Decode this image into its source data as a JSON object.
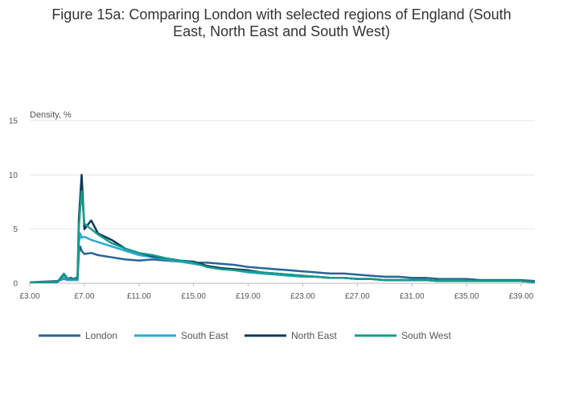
{
  "chart_data": {
    "type": "line",
    "title_lines": [
      "Figure 15a: Comparing London with selected regions of England (South",
      "East, North East and South West)"
    ],
    "ylabel": "Density, %",
    "xlabel": "",
    "xlim": [
      3.0,
      40.0
    ],
    "ylim": [
      0,
      15
    ],
    "x_ticks": [
      3,
      7,
      11,
      15,
      19,
      23,
      27,
      31,
      35,
      39
    ],
    "x_tick_labels": [
      "£3.00",
      "£7.00",
      "£11.00",
      "£15.00",
      "£19.00",
      "£23.00",
      "£27.00",
      "£31.00",
      "£35.00",
      "£39.00"
    ],
    "y_ticks": [
      0,
      5,
      10,
      15
    ],
    "y_tick_labels": [
      "0",
      "5",
      "10",
      "15"
    ],
    "grid": "horizontal",
    "legend_position": "bottom",
    "series": [
      {
        "name": "London",
        "color": "#2a6496",
        "x": [
          3.0,
          5.0,
          5.5,
          5.8,
          6.0,
          6.2,
          6.4,
          6.5,
          6.6,
          6.7,
          6.8,
          7.0,
          7.5,
          8.0,
          9.0,
          10.0,
          11.0,
          12.0,
          13.0,
          14.0,
          15.0,
          16.0,
          17.0,
          18.0,
          19.0,
          20.0,
          21.0,
          22.0,
          23.0,
          24.0,
          25.0,
          26.0,
          27.0,
          28.0,
          29.0,
          30.0,
          31.0,
          32.0,
          33.0,
          34.0,
          35.0,
          36.0,
          37.0,
          38.0,
          39.0,
          40.0
        ],
        "y": [
          0.1,
          0.2,
          0.4,
          0.3,
          0.3,
          0.3,
          0.3,
          0.3,
          2.8,
          3.4,
          3.0,
          2.7,
          2.8,
          2.6,
          2.4,
          2.2,
          2.1,
          2.2,
          2.1,
          2.0,
          1.9,
          1.9,
          1.8,
          1.7,
          1.5,
          1.4,
          1.3,
          1.2,
          1.1,
          1.0,
          0.9,
          0.9,
          0.8,
          0.7,
          0.6,
          0.6,
          0.5,
          0.5,
          0.4,
          0.4,
          0.4,
          0.3,
          0.3,
          0.3,
          0.3,
          0.2
        ]
      },
      {
        "name": "South East",
        "color": "#2aa9d6",
        "x": [
          3.0,
          5.0,
          5.5,
          5.8,
          6.0,
          6.2,
          6.4,
          6.5,
          6.6,
          6.7,
          6.8,
          7.0,
          7.5,
          8.0,
          9.0,
          10.0,
          11.0,
          12.0,
          13.0,
          14.0,
          15.0,
          16.0,
          17.0,
          18.0,
          19.0,
          20.0,
          21.0,
          22.0,
          23.0,
          24.0,
          25.0,
          26.0,
          27.0,
          28.0,
          29.0,
          30.0,
          31.0,
          32.0,
          33.0,
          34.0,
          35.0,
          36.0,
          37.0,
          38.0,
          39.0,
          40.0
        ],
        "y": [
          0.1,
          0.1,
          0.5,
          0.3,
          0.3,
          0.3,
          0.3,
          0.3,
          3.8,
          4.6,
          4.2,
          4.3,
          4.0,
          3.8,
          3.4,
          3.0,
          2.6,
          2.4,
          2.2,
          2.0,
          1.8,
          1.6,
          1.4,
          1.2,
          1.0,
          0.9,
          0.8,
          0.7,
          0.6,
          0.6,
          0.5,
          0.5,
          0.4,
          0.4,
          0.3,
          0.3,
          0.3,
          0.3,
          0.2,
          0.2,
          0.2,
          0.2,
          0.2,
          0.2,
          0.2,
          0.1
        ]
      },
      {
        "name": "North East",
        "color": "#0b3a55",
        "x": [
          3.0,
          5.0,
          5.5,
          5.8,
          6.0,
          6.2,
          6.4,
          6.5,
          6.6,
          6.7,
          6.8,
          7.0,
          7.5,
          8.0,
          9.0,
          10.0,
          11.0,
          12.0,
          13.0,
          14.0,
          15.0,
          16.0,
          17.0,
          18.0,
          19.0,
          20.0,
          21.0,
          22.0,
          23.0,
          24.0,
          25.0,
          26.0,
          27.0,
          28.0,
          29.0,
          30.0,
          31.0,
          32.0,
          33.0,
          34.0,
          35.0,
          36.0,
          37.0,
          38.0,
          39.0,
          40.0
        ],
        "y": [
          0.1,
          0.1,
          0.8,
          0.4,
          0.5,
          0.4,
          0.5,
          0.5,
          6.0,
          8.0,
          10.0,
          5.0,
          5.8,
          4.6,
          4.0,
          3.2,
          2.8,
          2.5,
          2.3,
          2.1,
          2.0,
          1.6,
          1.4,
          1.3,
          1.2,
          1.0,
          0.9,
          0.8,
          0.7,
          0.6,
          0.5,
          0.5,
          0.4,
          0.4,
          0.3,
          0.3,
          0.3,
          0.3,
          0.2,
          0.2,
          0.2,
          0.2,
          0.2,
          0.2,
          0.2,
          0.1
        ]
      },
      {
        "name": "South West",
        "color": "#1a9b8a",
        "x": [
          3.0,
          5.0,
          5.5,
          5.8,
          6.0,
          6.2,
          6.4,
          6.5,
          6.6,
          6.7,
          6.8,
          7.0,
          7.5,
          8.0,
          9.0,
          10.0,
          11.0,
          12.0,
          13.0,
          14.0,
          15.0,
          16.0,
          17.0,
          18.0,
          19.0,
          20.0,
          21.0,
          22.0,
          23.0,
          24.0,
          25.0,
          26.0,
          27.0,
          28.0,
          29.0,
          30.0,
          31.0,
          32.0,
          33.0,
          34.0,
          35.0,
          36.0,
          37.0,
          38.0,
          39.0,
          40.0
        ],
        "y": [
          0.1,
          0.1,
          0.9,
          0.4,
          0.4,
          0.4,
          0.4,
          0.4,
          5.2,
          7.0,
          8.5,
          5.5,
          5.0,
          4.5,
          3.7,
          3.2,
          2.8,
          2.6,
          2.3,
          2.1,
          1.9,
          1.5,
          1.3,
          1.2,
          1.1,
          1.0,
          0.9,
          0.8,
          0.7,
          0.6,
          0.5,
          0.5,
          0.4,
          0.4,
          0.3,
          0.3,
          0.3,
          0.3,
          0.2,
          0.2,
          0.2,
          0.2,
          0.2,
          0.2,
          0.2,
          0.1
        ]
      }
    ]
  }
}
